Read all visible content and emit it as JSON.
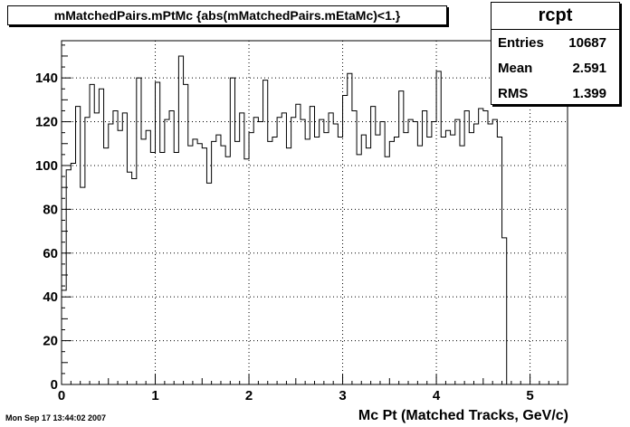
{
  "histogram": {
    "title": "mMatchedPairs.mPtMc {abs(mMatchedPairs.mEtaMc)<1.}",
    "xlabel": "Mc Pt (Matched Tracks, GeV/c)"
  },
  "stats": {
    "name": "rcpt",
    "rows": [
      {
        "label": "Entries",
        "value": "10687"
      },
      {
        "label": "Mean",
        "value": "2.591"
      },
      {
        "label": "RMS",
        "value": "1.399"
      }
    ]
  },
  "timestamp": "Mon Sep 17 13:44:02 2007",
  "chart_data": {
    "type": "bar",
    "style": "step-histogram",
    "xlim": [
      0,
      5.4
    ],
    "ylim": [
      0,
      157
    ],
    "bin_width": 0.05,
    "x_ticks": [
      0,
      1,
      2,
      3,
      4,
      5
    ],
    "x_tick_labels": [
      "0",
      "1",
      "2",
      "3",
      "4",
      "5"
    ],
    "y_ticks": [
      0,
      20,
      40,
      60,
      80,
      100,
      120,
      140
    ],
    "y_tick_labels": [
      "0",
      "20",
      "40",
      "60",
      "80",
      "100",
      "120",
      "140"
    ],
    "grid": true,
    "values": [
      43,
      98,
      101,
      127,
      90,
      122,
      137,
      124,
      135,
      108,
      119,
      125,
      116,
      124,
      97,
      94,
      140,
      112,
      116,
      106,
      138,
      106,
      121,
      125,
      106,
      150,
      137,
      109,
      112,
      110,
      108,
      92,
      111,
      114,
      109,
      104,
      140,
      111,
      124,
      103,
      115,
      122,
      120,
      139,
      111,
      113,
      122,
      124,
      108,
      122,
      128,
      121,
      112,
      127,
      113,
      121,
      115,
      124,
      119,
      113,
      132,
      142,
      125,
      105,
      114,
      108,
      127,
      114,
      120,
      104,
      111,
      113,
      134,
      115,
      121,
      120,
      109,
      125,
      113,
      120,
      143,
      113,
      116,
      114,
      121,
      109,
      125,
      115,
      119,
      126,
      125,
      119,
      121,
      113,
      67,
      0,
      0,
      0,
      0,
      0,
      0,
      0,
      0,
      0,
      0,
      0,
      0,
      0
    ]
  },
  "colors": {
    "line": "#000000",
    "grid": "#000000",
    "background": "#ffffff"
  }
}
